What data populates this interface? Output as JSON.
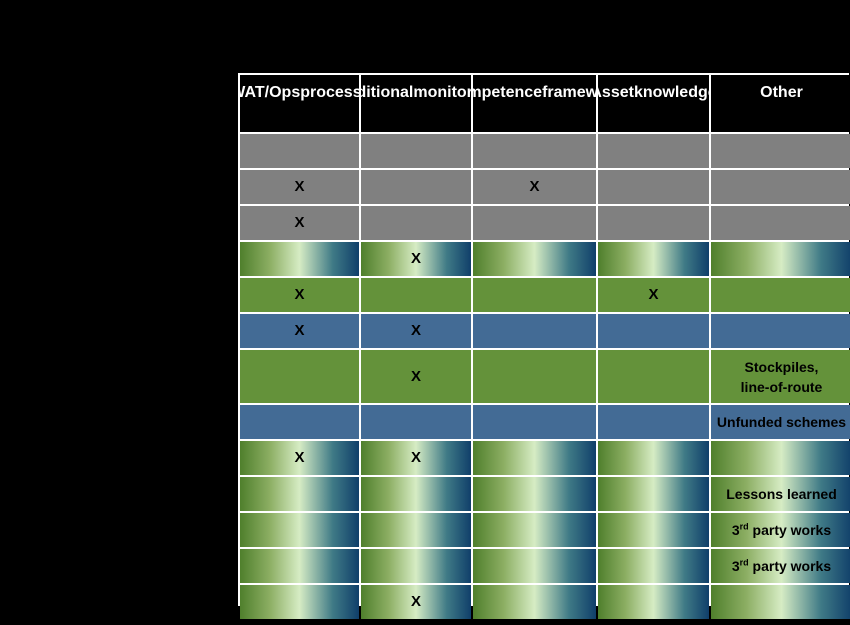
{
  "table": {
    "headers": [
      [
        "EWAT/Ops",
        "processes"
      ],
      [
        "Additional",
        "monitoring"
      ],
      [
        "Competence",
        "framework"
      ],
      [
        "Asset",
        "knowledge"
      ],
      [
        "Other"
      ]
    ],
    "rows": [
      {
        "fill": "gray",
        "cells": [
          "",
          "",
          "",
          "",
          ""
        ]
      },
      {
        "fill": "gray",
        "cells": [
          "X",
          "",
          "X",
          "",
          ""
        ]
      },
      {
        "fill": "gray",
        "cells": [
          "X",
          "",
          "",
          "",
          ""
        ]
      },
      {
        "fill": "grad",
        "cells": [
          "",
          "X",
          "",
          "",
          ""
        ]
      },
      {
        "fill": "green",
        "cells": [
          "X",
          "",
          "",
          "X",
          ""
        ]
      },
      {
        "fill": "blue",
        "cells": [
          "X",
          "X",
          "",
          "",
          ""
        ]
      },
      {
        "fill": "green",
        "cells": [
          "",
          "X",
          "",
          "",
          "Stockpiles, line-of-route"
        ]
      },
      {
        "fill": "blue",
        "cells": [
          "",
          "",
          "",
          "",
          "Unfunded schemes"
        ]
      },
      {
        "fill": "grad",
        "cells": [
          "X",
          "X",
          "",
          "",
          ""
        ]
      },
      {
        "fill": "grad",
        "cells": [
          "",
          "",
          "",
          "",
          "Lessons learned"
        ]
      },
      {
        "fill": "grad",
        "cells": [
          "",
          "",
          "",
          "",
          "3rd party works"
        ]
      },
      {
        "fill": "grad",
        "cells": [
          "",
          "",
          "",
          "",
          "3rd party works"
        ]
      },
      {
        "fill": "grad",
        "cells": [
          "",
          "X",
          "",
          "",
          ""
        ]
      }
    ]
  },
  "colors": {
    "background": "#000000",
    "grid_lines": "#ffffff",
    "gray": "#808080",
    "green": "#64923a",
    "blue": "#436b95",
    "gradient": [
      "#4f7f2c",
      "#8cae63",
      "#d6ecc4",
      "#3f7a86",
      "#103f6a"
    ]
  }
}
